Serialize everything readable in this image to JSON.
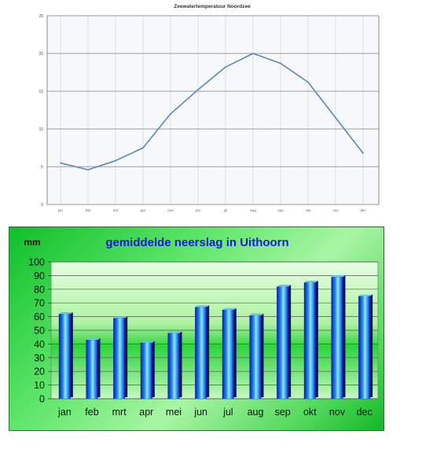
{
  "chart_data": [
    {
      "type": "line",
      "title": "Zeewatertemperatuur Noordzee",
      "categories": [
        "jan",
        "feb",
        "mrt",
        "apr",
        "mei",
        "jun",
        "jul",
        "aug",
        "sep",
        "okt",
        "nov",
        "dec"
      ],
      "series": [
        {
          "values": [
            5.5,
            4.6,
            5.8,
            7.5,
            12.0,
            15.2,
            18.2,
            20.0,
            18.7,
            16.2,
            11.5,
            6.8
          ]
        }
      ],
      "yticks": [
        "0",
        "5",
        "10",
        "15",
        "20",
        "25"
      ],
      "ylim": [
        0,
        25
      ],
      "grid": true,
      "colors": {
        "line": "#5b87b8",
        "grid": "#9a9a9a",
        "vgrid": "#d9dee8",
        "plot": "#f7f8fa"
      }
    },
    {
      "type": "bar",
      "title": "gemiddelde neerslag in Uithoorn",
      "ylabel": "mm",
      "categories": [
        "jan",
        "feb",
        "mrt",
        "apr",
        "mei",
        "jun",
        "jul",
        "aug",
        "sep",
        "okt",
        "nov",
        "dec"
      ],
      "values": [
        62,
        43,
        59,
        41,
        48,
        67,
        65,
        61,
        82,
        85,
        89,
        75
      ],
      "yticks": [
        "0",
        "10",
        "20",
        "30",
        "40",
        "50",
        "60",
        "70",
        "80",
        "90",
        "100"
      ],
      "ylim": [
        0,
        100
      ],
      "grid": true,
      "colors": {
        "title": "#1a1ad6",
        "bar_dark": "#0a1a9a",
        "bar_mid": "#1e8ef0",
        "bar_light": "#9fe0ff",
        "plot": "#c8f7c0"
      }
    }
  ]
}
